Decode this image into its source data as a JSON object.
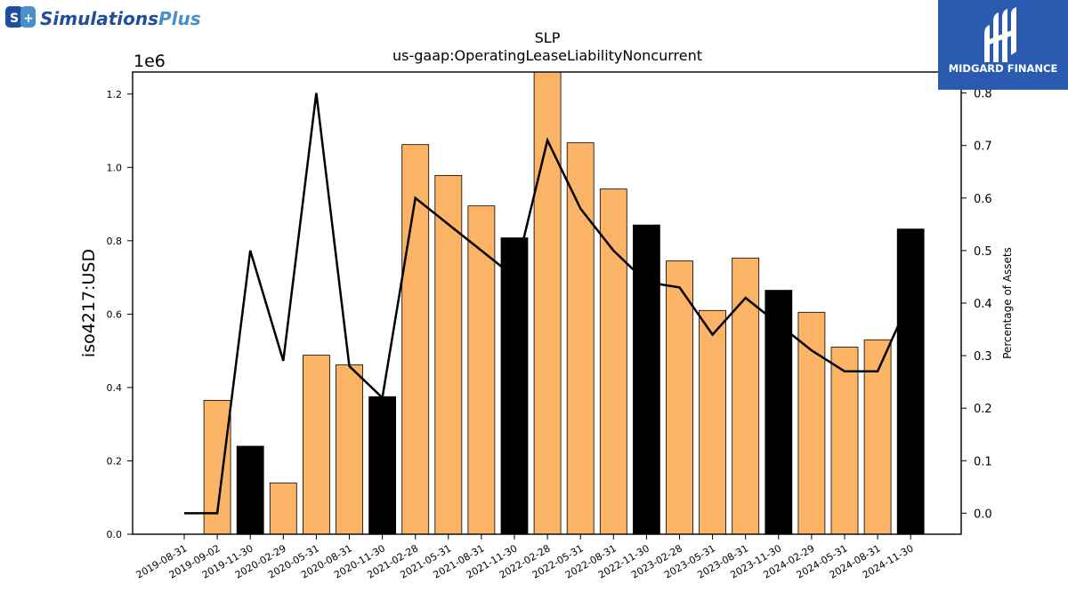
{
  "brand_left": {
    "name_part1": "Simulations",
    "name_part2": "Plus",
    "mark": "S+"
  },
  "brand_right": {
    "name": "MIDGARD FINANCE"
  },
  "colors": {
    "orange_bar": "#fbb465",
    "highlight_bar": "#000000",
    "line": "#000000",
    "brand_blue": "#1f4e9e",
    "brand_light": "#4a90c8",
    "badge_bg": "#2a5bb0"
  },
  "chart_data": {
    "type": "bar",
    "title": "SLP",
    "subtitle": "us-gaap:OperatingLeaseLiabilityNoncurrent",
    "ylabel": "iso4217:USD",
    "y2label": "Percentage of Assets",
    "yscale_label": "1e6",
    "ylim": [
      0,
      1260000
    ],
    "y2lim": [
      -0.04,
      0.84
    ],
    "yticks": [
      "0.0",
      "0.2",
      "0.4",
      "0.6",
      "0.8",
      "1.0",
      "1.2"
    ],
    "y2ticks": [
      "0.0",
      "0.1",
      "0.2",
      "0.3",
      "0.4",
      "0.5",
      "0.6",
      "0.7",
      "0.8"
    ],
    "categories": [
      "2019-08-31",
      "2019-09-02",
      "2019-11-30",
      "2020-02-29",
      "2020-05-31",
      "2020-08-31",
      "2020-11-30",
      "2021-02-28",
      "2021-05-31",
      "2021-08-31",
      "2021-11-30",
      "2022-02-28",
      "2022-05-31",
      "2022-08-31",
      "2022-11-30",
      "2023-02-28",
      "2023-05-31",
      "2023-08-31",
      "2023-11-30",
      "2024-02-29",
      "2024-05-31",
      "2024-08-31",
      "2024-11-30"
    ],
    "series": [
      {
        "kind": "bar",
        "values": [
          0,
          365000,
          240000,
          140000,
          488000,
          462000,
          375000,
          1062000,
          978000,
          895000,
          808000,
          1262000,
          1067000,
          941000,
          843000,
          745000,
          610000,
          753000,
          665000,
          605000,
          510000,
          530000,
          832000
        ],
        "highlight": [
          false,
          false,
          true,
          false,
          false,
          false,
          true,
          false,
          false,
          false,
          true,
          false,
          false,
          false,
          true,
          false,
          false,
          false,
          true,
          false,
          false,
          false,
          true
        ]
      },
      {
        "kind": "line",
        "axis": "right",
        "values": [
          0.0,
          0.0,
          0.5,
          0.29,
          0.8,
          0.28,
          0.22,
          0.6,
          0.55,
          0.5,
          0.45,
          0.71,
          0.58,
          0.5,
          0.44,
          0.43,
          0.34,
          0.41,
          0.36,
          0.31,
          0.27,
          0.27,
          0.41
        ]
      }
    ]
  }
}
